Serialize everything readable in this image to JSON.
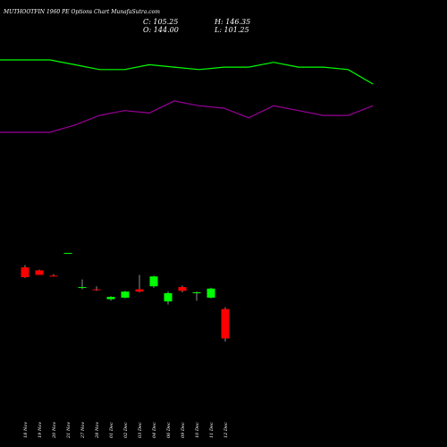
{
  "header": {
    "title": "MUTHOOTFIN 1960 PE Options Chart MunafaSutra.com",
    "close": "C: 105.25",
    "open": "O: 144.00",
    "high": "H: 146.35",
    "low": "L: 101.25"
  },
  "colors": {
    "background": "#000000",
    "bull": "#00ff00",
    "bear": "#ff0000",
    "line_upper": "#00ff00",
    "line_lower": "#990099"
  },
  "chart_data": {
    "type": "candlestick",
    "categories": [
      "18 Nov",
      "19 Nov",
      "20 Nov",
      "21 Nov",
      "27 Nov",
      "28 Nov",
      "01 Dec",
      "02 Dec",
      "03 Dec",
      "04 Dec",
      "06 Dec",
      "09 Dec",
      "10 Dec",
      "11 Dec",
      "12 Dec"
    ],
    "price_range": [
      100,
      245
    ],
    "candles": [
      {
        "open": 199,
        "high": 202,
        "low": 185,
        "close": 186
      },
      {
        "open": 195,
        "high": 196,
        "low": 189,
        "close": 189
      },
      {
        "open": 188,
        "high": 190,
        "low": 187,
        "close": 187
      },
      {
        "open": 218,
        "high": 218,
        "low": 218,
        "close": 218
      },
      {
        "open": 172,
        "high": 183,
        "low": 170,
        "close": 173
      },
      {
        "open": 170,
        "high": 174,
        "low": 168,
        "close": 169
      },
      {
        "open": 157,
        "high": 161,
        "low": 155,
        "close": 160
      },
      {
        "open": 159,
        "high": 168,
        "low": 158,
        "close": 167
      },
      {
        "open": 170,
        "high": 189,
        "low": 166,
        "close": 167
      },
      {
        "open": 174,
        "high": 188,
        "low": 172,
        "close": 187
      },
      {
        "open": 154,
        "high": 167,
        "low": 150,
        "close": 165
      },
      {
        "open": 173,
        "high": 175,
        "low": 166,
        "close": 168
      },
      {
        "open": 165,
        "high": 167,
        "low": 155,
        "close": 166
      },
      {
        "open": 159,
        "high": 172,
        "low": 158,
        "close": 171
      },
      {
        "open": 144.0,
        "high": 146.35,
        "low": 101.25,
        "close": 105.25
      }
    ],
    "series": [
      {
        "values": [
          90,
          90,
          88,
          86,
          86,
          88,
          87,
          86,
          87,
          87,
          89,
          87,
          87,
          86,
          80
        ]
      },
      {
        "values": [
          60,
          60,
          63,
          67,
          69,
          68,
          73,
          71,
          70,
          66,
          71,
          69,
          67,
          67,
          71
        ]
      }
    ]
  }
}
